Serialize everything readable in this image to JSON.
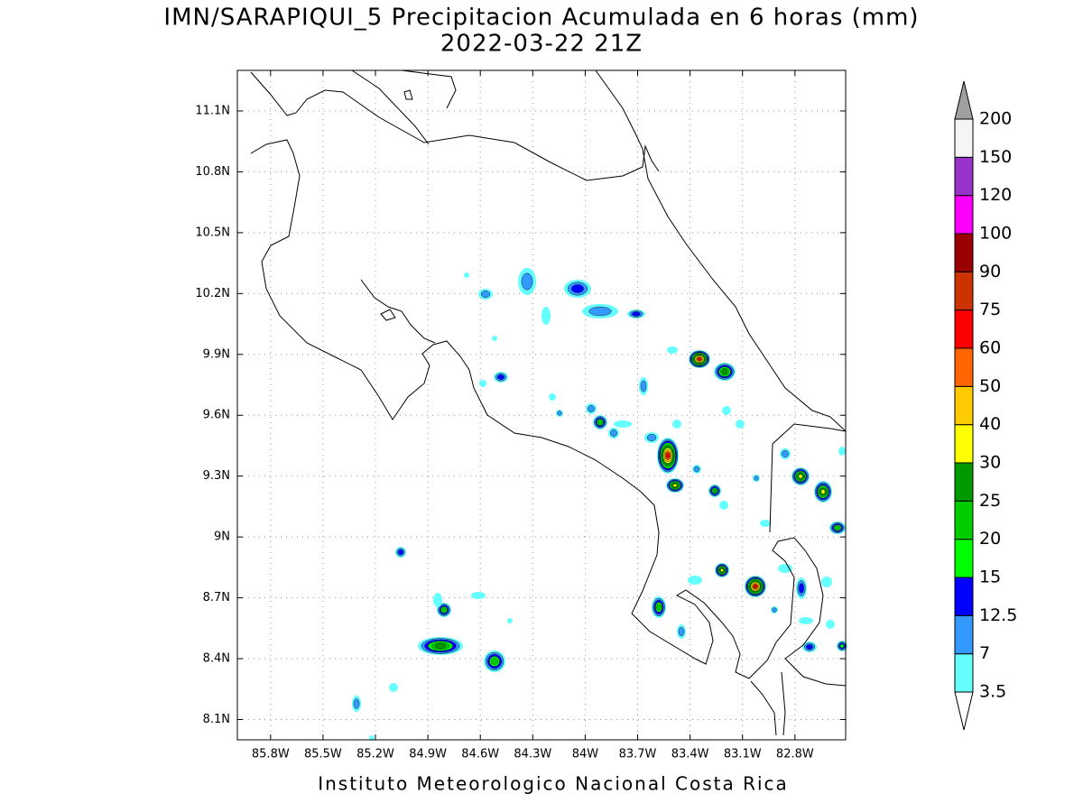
{
  "map": {
    "title": "IMN/SARAPIQUI_5 Precipitacion Acumulada en 6 horas (mm)",
    "subtitle": "2022-03-22 21Z",
    "footer": "Instituto Meteorologico Nacional Costa Rica",
    "xlim": [
      -85.99,
      -82.51
    ],
    "ylim": [
      8.0,
      11.3
    ],
    "xticks": [
      {
        "value": -85.8,
        "label": "85.8W"
      },
      {
        "value": -85.5,
        "label": "85.5W"
      },
      {
        "value": -85.2,
        "label": "85.2W"
      },
      {
        "value": -84.9,
        "label": "84.9W"
      },
      {
        "value": -84.6,
        "label": "84.6W"
      },
      {
        "value": -84.3,
        "label": "84.3W"
      },
      {
        "value": -84.0,
        "label": "84W"
      },
      {
        "value": -83.7,
        "label": "83.7W"
      },
      {
        "value": -83.4,
        "label": "83.4W"
      },
      {
        "value": -83.1,
        "label": "83.1W"
      },
      {
        "value": -82.8,
        "label": "82.8W"
      }
    ],
    "yticks": [
      {
        "value": 8.1,
        "label": "8.1N"
      },
      {
        "value": 8.4,
        "label": "8.4N"
      },
      {
        "value": 8.7,
        "label": "8.7N"
      },
      {
        "value": 9.0,
        "label": "9N"
      },
      {
        "value": 9.3,
        "label": "9.3N"
      },
      {
        "value": 9.6,
        "label": "9.6N"
      },
      {
        "value": 9.9,
        "label": "9.9N"
      },
      {
        "value": 10.2,
        "label": "10.2N"
      },
      {
        "value": 10.5,
        "label": "10.5N"
      },
      {
        "value": 10.8,
        "label": "10.8N"
      },
      {
        "value": 11.1,
        "label": "11.1N"
      }
    ],
    "grid": true,
    "colorbar": {
      "levels": [
        3.5,
        7,
        12.5,
        15,
        20,
        25,
        30,
        40,
        50,
        60,
        75,
        90,
        100,
        120,
        150,
        200
      ],
      "colors": [
        "#66ffff",
        "#3399ff",
        "#0000ff",
        "#00ff00",
        "#00cc00",
        "#009900",
        "#ffff00",
        "#ffcc00",
        "#ff6600",
        "#ff0000",
        "#cc3300",
        "#990000",
        "#ff00ff",
        "#9933cc",
        "#f5f5f5"
      ],
      "under_color": "#ffffff",
      "over_color": "#a0a0a0"
    }
  }
}
